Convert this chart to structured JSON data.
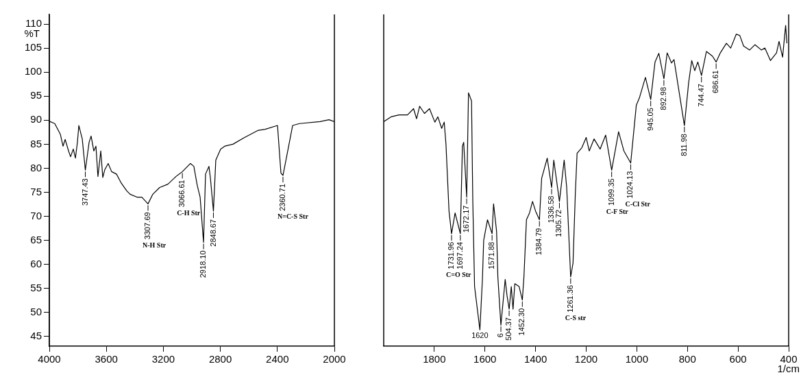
{
  "chart_data": [
    {
      "type": "line",
      "ylabel": "%T",
      "xlim": [
        4000,
        2000
      ],
      "xticks": [
        4000,
        3600,
        3200,
        2800,
        2400,
        2000
      ],
      "ylim": [
        43,
        112
      ],
      "yticks": [
        45,
        50,
        55,
        60,
        65,
        70,
        75,
        80,
        85,
        90,
        95,
        100,
        105,
        110
      ],
      "x": [
        4000,
        3962,
        3923,
        3904,
        3889,
        3865,
        3851,
        3832,
        3817,
        3803,
        3793,
        3769,
        3747.43,
        3721,
        3707,
        3688,
        3673,
        3659,
        3639,
        3625,
        3611,
        3587,
        3563,
        3529,
        3495,
        3457,
        3433,
        3385,
        3351,
        3307.69,
        3274,
        3226,
        3168,
        3111,
        3066.61,
        3010,
        2986,
        2962,
        2942,
        2918.1,
        2904,
        2880,
        2870,
        2848.67,
        2832,
        2798,
        2769,
        2712,
        2630,
        2534,
        2486,
        2399,
        2375,
        2360.71,
        2337,
        2293,
        2245,
        2101,
        2038,
        2000
      ],
      "series": [
        {
          "color": "#000000",
          "values": [
            89.8,
            89.3,
            87.1,
            84.6,
            86,
            83.6,
            82.4,
            84,
            82.1,
            85.4,
            88.9,
            86.1,
            79.6,
            85.4,
            86.7,
            83.6,
            84.6,
            78.3,
            83.6,
            78.1,
            79.7,
            81,
            79.3,
            78.8,
            76.9,
            75.3,
            74.6,
            74,
            74,
            72.6,
            74.6,
            76,
            76.7,
            78.3,
            79.3,
            81,
            80.4,
            76.4,
            74,
            64.6,
            78.8,
            80.4,
            78,
            71.1,
            81.7,
            84,
            84.6,
            85,
            86.4,
            87.9,
            88.1,
            88.9,
            79,
            78.5,
            82.1,
            88.9,
            89.3,
            89.7,
            90.1,
            89.7
          ]
        }
      ],
      "annotations": [
        {
          "text": "3747.43",
          "x": 3747.43,
          "y": 79.6
        },
        {
          "text": "3307.69",
          "x": 3307.69,
          "y": 72.6
        },
        "N-H Str",
        {
          "text": "3066.61",
          "x": 3066.61,
          "y": 79.3
        },
        "C-H Str",
        {
          "text": "2918.10",
          "x": 2918.1,
          "y": 64.6
        },
        {
          "text": "2848.67",
          "x": 2848.67,
          "y": 71.1
        },
        {
          "text": "2360.71",
          "x": 2360.71,
          "y": 78.5
        },
        "N=C-S Str"
      ]
    },
    {
      "type": "line",
      "xlabel": "1/cm",
      "tick_labels": "x",
      "xlim": [
        2000,
        400
      ],
      "xticks": [
        1800,
        1600,
        1400,
        1200,
        1000,
        800,
        600,
        400
      ],
      "ylim": [
        43,
        112
      ],
      "yticks": [
        45,
        50,
        55,
        60,
        65,
        70,
        75,
        80,
        85,
        90,
        95,
        100,
        105,
        110
      ],
      "x": [
        2000,
        1971,
        1940,
        1906,
        1882,
        1870,
        1858,
        1839,
        1819,
        1798,
        1786,
        1771,
        1761,
        1754,
        1742,
        1731.96,
        1718,
        1697.24,
        1689,
        1684,
        1672.17,
        1665,
        1653,
        1648,
        1641,
        1620,
        1610,
        1605,
        1590,
        1571.88,
        1566,
        1554,
        1549,
        1537,
        1520,
        1513,
        1504.37,
        1496,
        1489,
        1482,
        1465,
        1452.3,
        1446,
        1436,
        1424,
        1412,
        1400,
        1384.79,
        1376,
        1354,
        1336.58,
        1328,
        1305.72,
        1287,
        1277,
        1261.36,
        1252,
        1243,
        1236,
        1217,
        1200,
        1188,
        1169,
        1145,
        1123,
        1099.35,
        1072,
        1051,
        1024.13,
        1002,
        990,
        966,
        945.05,
        928,
        913,
        892.98,
        880,
        863,
        853,
        811.98,
        795,
        783,
        771,
        759,
        744.47,
        725,
        701,
        686.61,
        670,
        646,
        629,
        607,
        593,
        578,
        554,
        533,
        508,
        494,
        472,
        448,
        438,
        424,
        412,
        407
      ],
      "series": [
        {
          "color": "#000000",
          "values": [
            89.7,
            90.7,
            91.1,
            91.1,
            92.4,
            90.3,
            92.9,
            91.4,
            92.4,
            89.6,
            90.7,
            88.3,
            89.6,
            85,
            71.1,
            66.4,
            70.7,
            66.4,
            84.6,
            85.4,
            74,
            95.7,
            94,
            73.1,
            55.4,
            46.4,
            56.9,
            65,
            69.3,
            66.4,
            72.6,
            66.9,
            57.4,
            47.4,
            56.9,
            53.6,
            50.7,
            55.4,
            50.7,
            56,
            55.4,
            52.6,
            57.4,
            69.3,
            70.7,
            73.1,
            71.1,
            69.3,
            77.9,
            82.1,
            76,
            81.7,
            73.1,
            81.7,
            76,
            57.4,
            60.3,
            74.6,
            83.1,
            84.3,
            86.4,
            83.6,
            86.1,
            84,
            86.9,
            79.6,
            87.6,
            83.6,
            81.1,
            93.1,
            94.6,
            98.9,
            94.3,
            102.1,
            103.9,
            98.6,
            104,
            101.9,
            102.6,
            88.9,
            97.9,
            102.4,
            100.3,
            102.1,
            99.3,
            104.3,
            103.3,
            102.1,
            104,
            106,
            105,
            107.9,
            107.6,
            105.4,
            104.6,
            105.7,
            104.6,
            105,
            102.4,
            104,
            106.4,
            103.1,
            109.7,
            106
          ]
        }
      ],
      "annotations": [
        {
          "text": "1731.96",
          "x": 1731.96,
          "y": 66.4
        },
        "C=O Str",
        {
          "text": "1697.24",
          "x": 1697.24,
          "y": 66.4
        },
        {
          "text": "1672.17",
          "x": 1672.17,
          "y": 74
        },
        {
          "text": "1620",
          "x": 1620,
          "y": 46.4
        },
        {
          "text": "1571.88",
          "x": 1571.88,
          "y": 66.4
        },
        {
          "text": "6",
          "x": 1537,
          "y": 47.4
        },
        {
          "text": "504.37",
          "x": 1504.37,
          "y": 50.7
        },
        {
          "text": "1452.30",
          "x": 1452.3,
          "y": 52.6
        },
        {
          "text": "1384.79",
          "x": 1384.79,
          "y": 69.3
        },
        {
          "text": "1336.58",
          "x": 1336.58,
          "y": 76
        },
        {
          "text": "1305.72",
          "x": 1305.72,
          "y": 73.1
        },
        {
          "text": "1261.36",
          "x": 1261.36,
          "y": 57.4
        },
        "C-S str",
        {
          "text": "1099.35",
          "x": 1099.35,
          "y": 79.6
        },
        "C-F Str",
        {
          "text": "1024.13",
          "x": 1024.13,
          "y": 81.1
        },
        "C-Cl Str",
        {
          "text": "945.05",
          "x": 945.05,
          "y": 94.3
        },
        {
          "text": "892.98",
          "x": 892.98,
          "y": 98.6
        },
        {
          "text": "811.98",
          "x": 811.98,
          "y": 88.9
        },
        {
          "text": "744.47",
          "x": 744.47,
          "y": 99.3
        },
        {
          "text": "686.61",
          "x": 686.61,
          "y": 102.1
        }
      ]
    }
  ]
}
